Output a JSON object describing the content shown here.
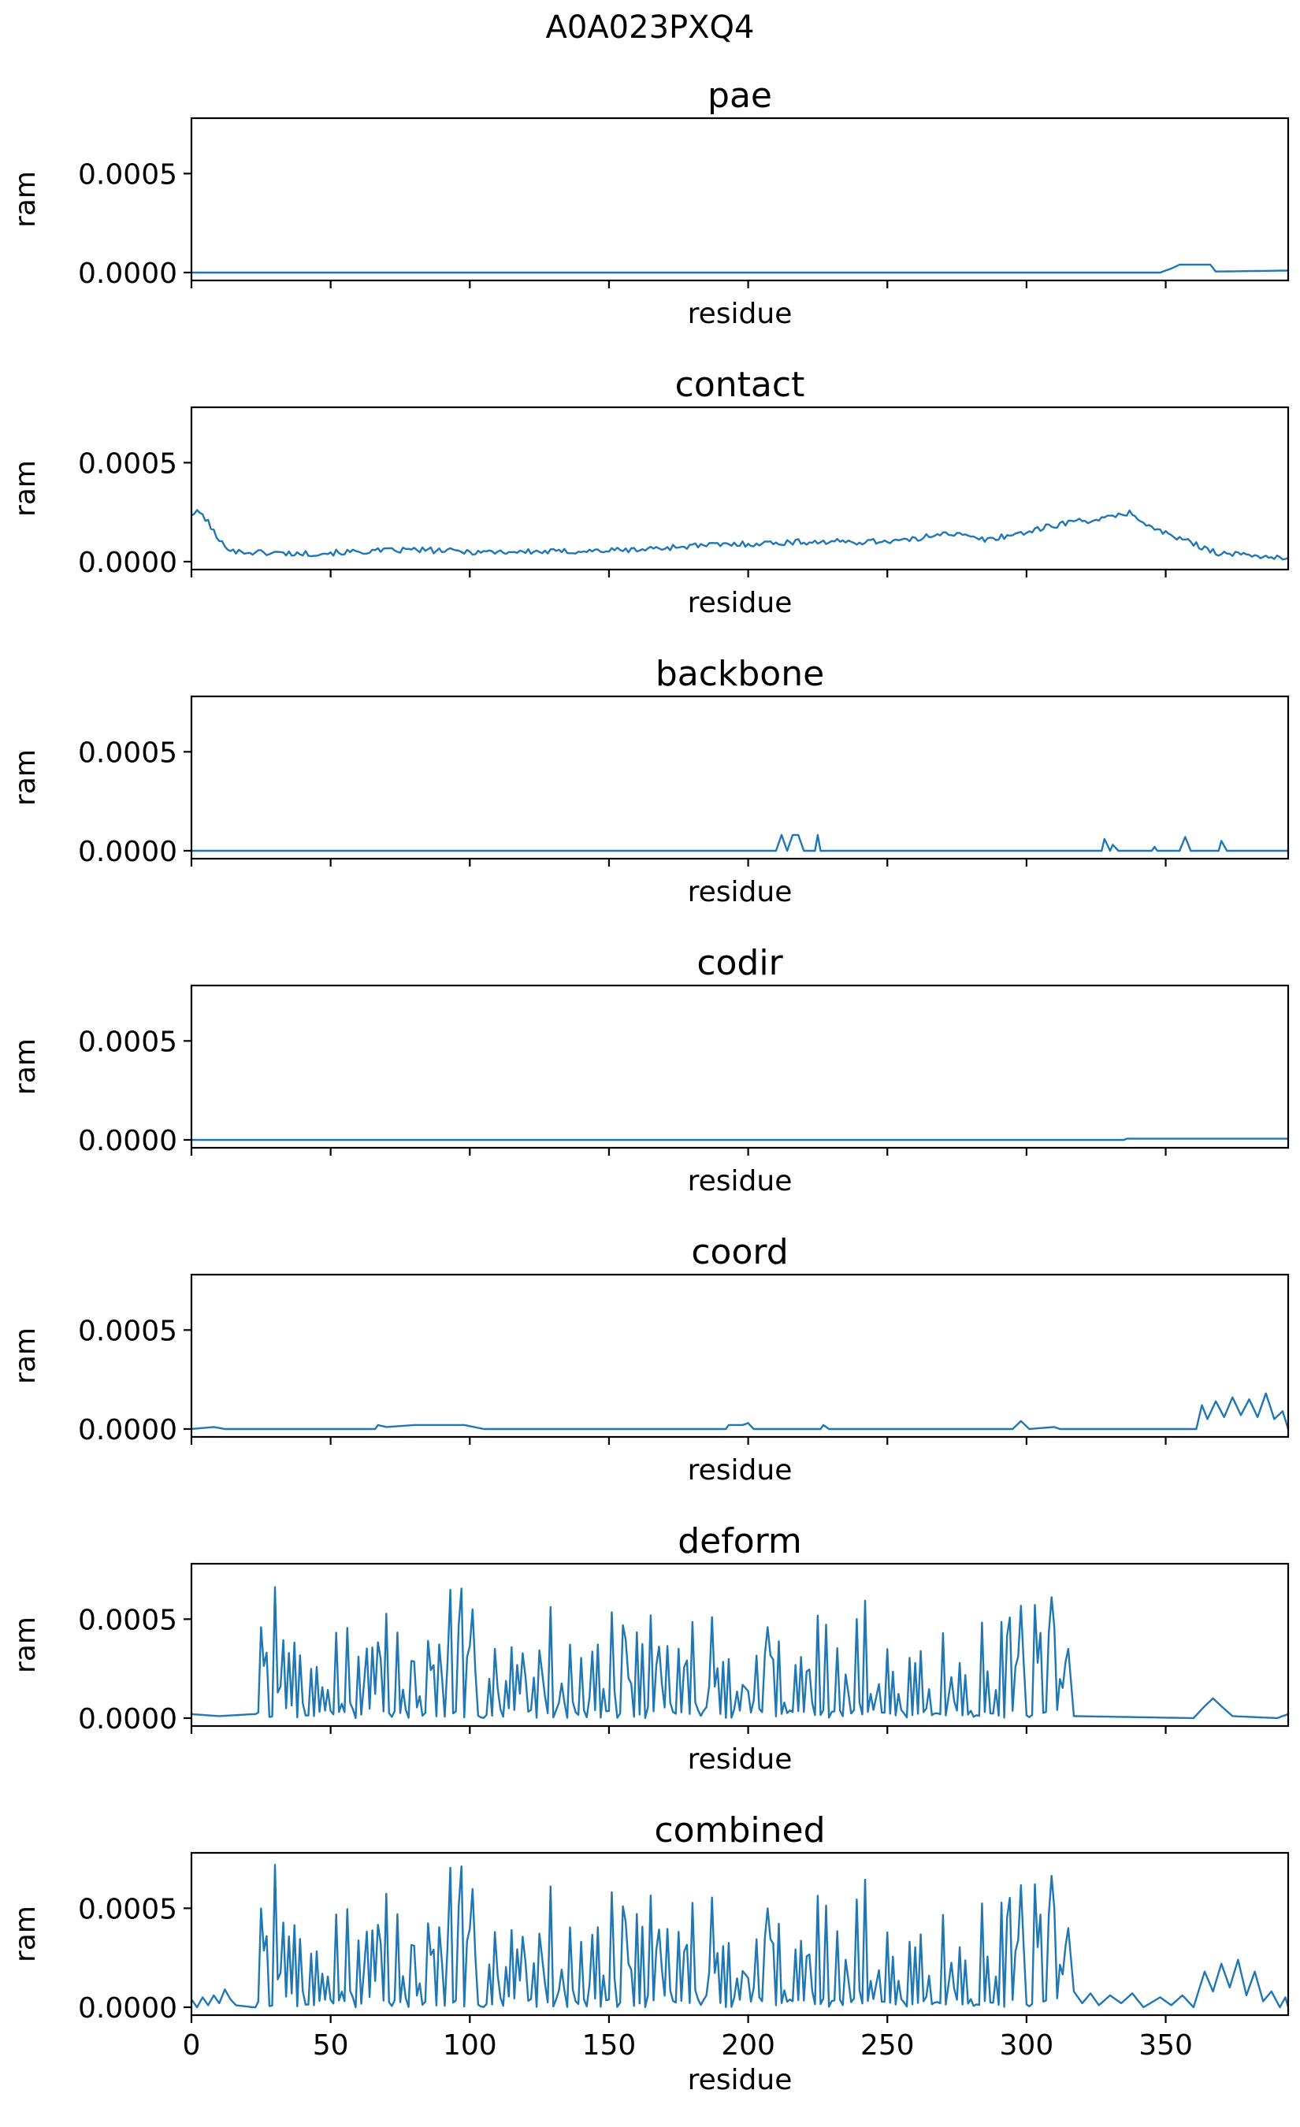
{
  "figure_title": "A0A023PXQ4",
  "colors": {
    "series": "#1f77b4",
    "axes": "#000000",
    "background": "#ffffff"
  },
  "chart_data": [
    {
      "type": "line",
      "title": "pae",
      "xlabel": "residue",
      "ylabel": "ram",
      "xlim": [
        0,
        394
      ],
      "ylim": [
        -4e-05,
        0.00078
      ],
      "yticks": [
        "0.0000",
        "0.0005"
      ],
      "xticks": [
        "0",
        "50",
        "100",
        "150",
        "200",
        "250",
        "300",
        "350"
      ],
      "show_xticklabels": false,
      "grid": false,
      "series": [
        {
          "keypoints": [
            [
              0,
              0
            ],
            [
              348,
              0
            ],
            [
              352,
              2e-05
            ],
            [
              355,
              4e-05
            ],
            [
              366,
              4e-05
            ],
            [
              368,
              5e-06
            ],
            [
              394,
              1e-05
            ]
          ]
        }
      ]
    },
    {
      "type": "line",
      "title": "contact",
      "xlabel": "residue",
      "ylabel": "ram",
      "xlim": [
        0,
        394
      ],
      "ylim": [
        -4e-05,
        0.00078
      ],
      "yticks": [
        "0.0000",
        "0.0005"
      ],
      "xticks": [
        "0",
        "50",
        "100",
        "150",
        "200",
        "250",
        "300",
        "350"
      ],
      "show_xticklabels": false,
      "grid": false,
      "series": [
        {
          "keypoints": [
            [
              0,
              0.00024
            ],
            [
              3,
              0.00025
            ],
            [
              6,
              0.0002
            ],
            [
              10,
              0.0001
            ],
            [
              16,
              5e-05
            ],
            [
              40,
              4e-05
            ],
            [
              60,
              5e-05
            ],
            [
              80,
              6e-05
            ],
            [
              100,
              5e-05
            ],
            [
              130,
              5e-05
            ],
            [
              160,
              6e-05
            ],
            [
              180,
              8e-05
            ],
            [
              200,
              9e-05
            ],
            [
              220,
              0.0001
            ],
            [
              240,
              0.0001
            ],
            [
              260,
              0.00011
            ],
            [
              270,
              0.00015
            ],
            [
              285,
              0.00011
            ],
            [
              300,
              0.00015
            ],
            [
              315,
              0.0002
            ],
            [
              330,
              0.00022
            ],
            [
              337,
              0.00025
            ],
            [
              345,
              0.00017
            ],
            [
              360,
              9e-05
            ],
            [
              370,
              4e-05
            ],
            [
              385,
              3e-05
            ],
            [
              394,
              1e-05
            ]
          ],
          "noise": 1.5e-05
        }
      ]
    },
    {
      "type": "line",
      "title": "backbone",
      "xlabel": "residue",
      "ylabel": "ram",
      "xlim": [
        0,
        394
      ],
      "ylim": [
        -4e-05,
        0.00078
      ],
      "yticks": [
        "0.0000",
        "0.0005"
      ],
      "xticks": [
        "0",
        "50",
        "100",
        "150",
        "200",
        "250",
        "300",
        "350"
      ],
      "show_xticklabels": false,
      "grid": false,
      "series": [
        {
          "keypoints": [
            [
              0,
              0
            ],
            [
              210,
              0
            ],
            [
              212,
              8e-05
            ],
            [
              214,
              0
            ],
            [
              216,
              8e-05
            ],
            [
              218,
              8e-05
            ],
            [
              220,
              0
            ],
            [
              224,
              0
            ],
            [
              225,
              8e-05
            ],
            [
              226,
              0
            ],
            [
              327,
              0
            ],
            [
              328,
              6e-05
            ],
            [
              330,
              0
            ],
            [
              331,
              3e-05
            ],
            [
              333,
              0
            ],
            [
              345,
              0
            ],
            [
              346,
              2e-05
            ],
            [
              347,
              0
            ],
            [
              355,
              0
            ],
            [
              357,
              7e-05
            ],
            [
              359,
              0
            ],
            [
              369,
              0
            ],
            [
              370,
              5e-05
            ],
            [
              372,
              0
            ],
            [
              394,
              0
            ]
          ]
        }
      ]
    },
    {
      "type": "line",
      "title": "codir",
      "xlabel": "residue",
      "ylabel": "ram",
      "xlim": [
        0,
        394
      ],
      "ylim": [
        -4e-05,
        0.00078
      ],
      "yticks": [
        "0.0000",
        "0.0005"
      ],
      "xticks": [
        "0",
        "50",
        "100",
        "150",
        "200",
        "250",
        "300",
        "350"
      ],
      "show_xticklabels": false,
      "grid": false,
      "series": [
        {
          "keypoints": [
            [
              0,
              0
            ],
            [
              335,
              0
            ],
            [
              336,
              6e-06
            ],
            [
              394,
              6e-06
            ]
          ]
        }
      ]
    },
    {
      "type": "line",
      "title": "coord",
      "xlabel": "residue",
      "ylabel": "ram",
      "xlim": [
        0,
        394
      ],
      "ylim": [
        -4e-05,
        0.00078
      ],
      "yticks": [
        "0.0000",
        "0.0005"
      ],
      "xticks": [
        "0",
        "50",
        "100",
        "150",
        "200",
        "250",
        "300",
        "350"
      ],
      "show_xticklabels": false,
      "grid": false,
      "series": [
        {
          "keypoints": [
            [
              0,
              0
            ],
            [
              8,
              1e-05
            ],
            [
              12,
              0
            ],
            [
              66,
              0
            ],
            [
              67,
              2e-05
            ],
            [
              70,
              1e-05
            ],
            [
              80,
              2e-05
            ],
            [
              90,
              2e-05
            ],
            [
              98,
              2e-05
            ],
            [
              105,
              0
            ],
            [
              192,
              0
            ],
            [
              193,
              2e-05
            ],
            [
              198,
              2e-05
            ],
            [
              200,
              3e-05
            ],
            [
              202,
              0
            ],
            [
              226,
              0
            ],
            [
              227,
              2e-05
            ],
            [
              229,
              0
            ],
            [
              295,
              0
            ],
            [
              298,
              4e-05
            ],
            [
              301,
              0
            ],
            [
              310,
              1e-05
            ],
            [
              312,
              0
            ],
            [
              361,
              0
            ],
            [
              363,
              0.00012
            ],
            [
              365,
              5e-05
            ],
            [
              368,
              0.00014
            ],
            [
              371,
              6e-05
            ],
            [
              374,
              0.00016
            ],
            [
              377,
              7e-05
            ],
            [
              380,
              0.00015
            ],
            [
              383,
              6e-05
            ],
            [
              386,
              0.00018
            ],
            [
              389,
              5e-05
            ],
            [
              392,
              9e-05
            ],
            [
              394,
              0
            ]
          ]
        }
      ]
    },
    {
      "type": "line",
      "title": "deform",
      "xlabel": "residue",
      "ylabel": "ram",
      "xlim": [
        0,
        394
      ],
      "ylim": [
        -4e-05,
        0.00078
      ],
      "yticks": [
        "0.0000",
        "0.0005"
      ],
      "xticks": [
        "0",
        "50",
        "100",
        "150",
        "200",
        "250",
        "300",
        "350"
      ],
      "show_xticklabels": false,
      "grid": false,
      "series": [
        {
          "spiky": {
            "x0": 24,
            "x1": 315,
            "seed": 7,
            "max": 0.00069
          },
          "keypoints": [
            [
              0,
              2e-05
            ],
            [
              10,
              1e-05
            ],
            [
              22,
              2e-05
            ],
            [
              24,
              2e-05
            ],
            [
              315,
              0.00035
            ],
            [
              317,
              1e-05
            ],
            [
              360,
              0
            ],
            [
              364,
              6e-05
            ],
            [
              367,
              0.0001
            ],
            [
              370,
              6e-05
            ],
            [
              374,
              1e-05
            ],
            [
              390,
              0
            ],
            [
              394,
              2e-05
            ]
          ]
        }
      ]
    },
    {
      "type": "line",
      "title": "combined",
      "xlabel": "residue",
      "ylabel": "ram",
      "xlim": [
        0,
        394
      ],
      "ylim": [
        -4e-05,
        0.00078
      ],
      "yticks": [
        "0.0000",
        "0.0005"
      ],
      "xticks": [
        "0",
        "50",
        "100",
        "150",
        "200",
        "250",
        "300",
        "350"
      ],
      "show_xticklabels": true,
      "grid": false,
      "series": [
        {
          "spiky": {
            "x0": 24,
            "x1": 315,
            "seed": 7,
            "max": 0.00075
          },
          "keypoints": [
            [
              0,
              4e-05
            ],
            [
              2,
              0
            ],
            [
              4,
              5e-05
            ],
            [
              6,
              1e-05
            ],
            [
              8,
              6e-05
            ],
            [
              10,
              2e-05
            ],
            [
              12,
              9e-05
            ],
            [
              14,
              4e-05
            ],
            [
              16,
              1e-05
            ],
            [
              22,
              0
            ],
            [
              24,
              0
            ],
            [
              315,
              0.0004
            ],
            [
              317,
              8e-05
            ],
            [
              320,
              2e-05
            ],
            [
              323,
              7e-05
            ],
            [
              326,
              1e-05
            ],
            [
              330,
              6e-05
            ],
            [
              334,
              2e-05
            ],
            [
              338,
              7e-05
            ],
            [
              342,
              0
            ],
            [
              348,
              5e-05
            ],
            [
              352,
              1e-05
            ],
            [
              356,
              6e-05
            ],
            [
              360,
              0
            ],
            [
              364,
              0.00018
            ],
            [
              367,
              8e-05
            ],
            [
              370,
              0.00022
            ],
            [
              373,
              0.0001
            ],
            [
              376,
              0.00024
            ],
            [
              379,
              6e-05
            ],
            [
              382,
              0.00018
            ],
            [
              385,
              3e-05
            ],
            [
              388,
              8e-05
            ],
            [
              391,
              0
            ],
            [
              393,
              5e-05
            ],
            [
              394,
              0
            ]
          ]
        }
      ]
    }
  ]
}
